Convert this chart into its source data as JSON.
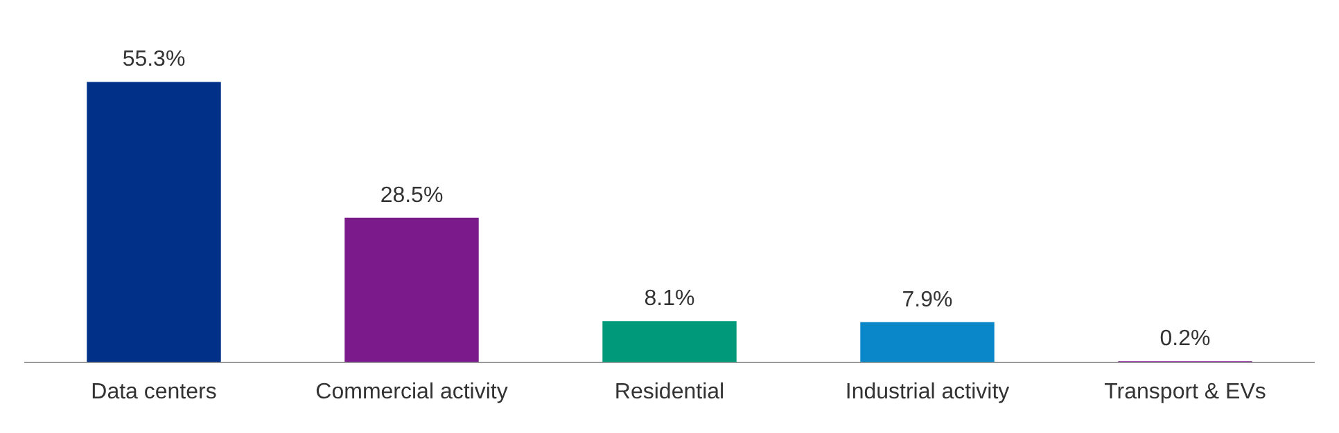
{
  "chart_data": {
    "type": "bar",
    "categories": [
      "Data centers",
      "Commercial activity",
      "Residential",
      "Industrial activity",
      "Transport & EVs"
    ],
    "values": [
      55.3,
      28.5,
      8.1,
      7.9,
      0.2
    ],
    "colors": [
      "#003087",
      "#7b1a8a",
      "#009a7a",
      "#0a87c9",
      "#7b1a8a"
    ],
    "value_labels": [
      "55.3%",
      "28.5%",
      "8.1%",
      "7.9%",
      "0.2%"
    ],
    "grid": false,
    "legend": false,
    "tick_labels": "x"
  }
}
